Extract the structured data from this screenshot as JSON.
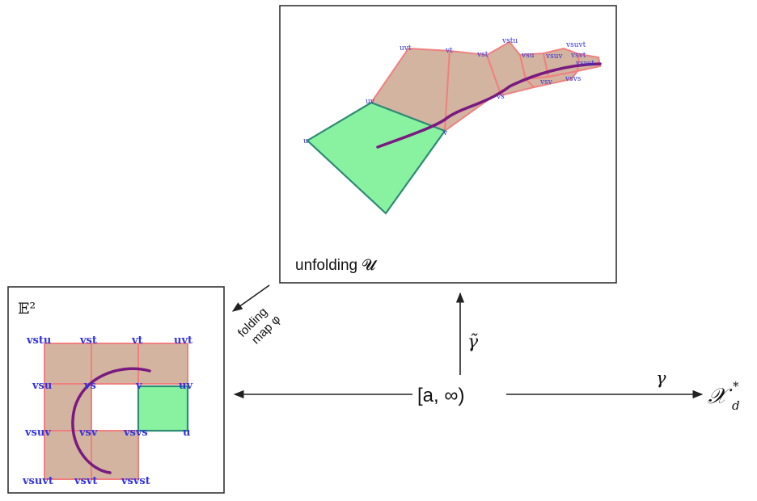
{
  "euclid_panel": {
    "title": "𝔼²",
    "vertex_labels": [
      "vstu",
      "vst",
      "vt",
      "uvt",
      "vsu",
      "vs",
      "v",
      "uv",
      "vsuv",
      "vsv",
      "vsvs",
      "u",
      "vsuvt",
      "vsvt",
      "vsvst"
    ]
  },
  "unfold_panel": {
    "label": "unfolding 𝓤",
    "vertex_labels": [
      "uvt",
      "vt",
      "vst",
      "vstu",
      "vsu",
      "vsuv",
      "vsuvt",
      "vsvt",
      "vsvst",
      "vsv",
      "vsvs",
      "vs",
      "v",
      "uv",
      "u"
    ]
  },
  "folding_label_line1": "folding",
  "folding_label_line2": "map φ",
  "interval_label": "[a, ∞)",
  "gamma_tilde_label": "γ̃",
  "gamma_label": "γ",
  "target_label": "𝒳",
  "target_sub": "d",
  "target_sup": "*",
  "colors": {
    "tan_fill": "#d2b4a0",
    "green_fill": "#88f2a0",
    "edge_red": "#f08080",
    "edge_green": "#2e8b74",
    "label_blue": "#3333dd",
    "curve_purple": "#7a1a80"
  }
}
